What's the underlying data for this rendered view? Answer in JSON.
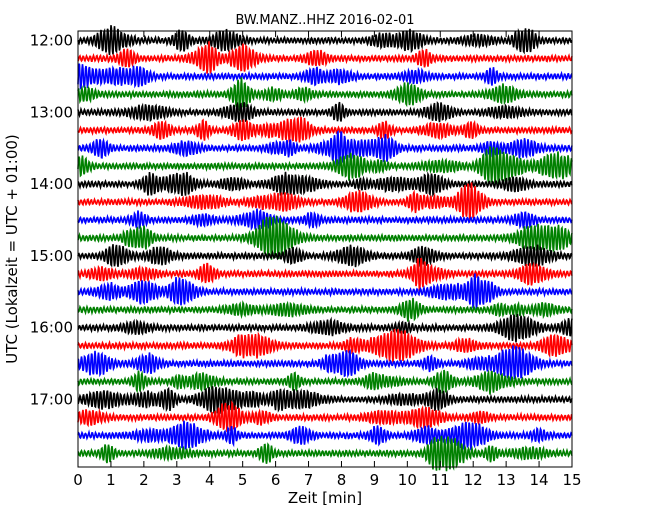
{
  "chart_data": {
    "type": "line",
    "title": "BW.MANZ..HHZ 2016-02-01",
    "xlabel": "Zeit  [min]",
    "ylabel": "UTC (Lokalzeit = UTC + 01:00)",
    "xlim": [
      0,
      15
    ],
    "x_ticks": [
      "0",
      "1",
      "2",
      "3",
      "4",
      "5",
      "6",
      "7",
      "8",
      "9",
      "10",
      "11",
      "12",
      "13",
      "14",
      "15"
    ],
    "y_tick_labels": [
      "12:00",
      "13:00",
      "14:00",
      "15:00",
      "16:00",
      "17:00"
    ],
    "trace_start_times": [
      "12:00",
      "12:15",
      "12:30",
      "12:45",
      "13:00",
      "13:15",
      "13:30",
      "13:45",
      "14:00",
      "14:15",
      "14:30",
      "14:45",
      "15:00",
      "15:15",
      "15:30",
      "15:45",
      "16:00",
      "16:15",
      "16:30",
      "16:45",
      "17:00",
      "17:15",
      "17:30",
      "17:45"
    ],
    "trace_colors": [
      "#000000",
      "#ff0000",
      "#0000ff",
      "#008000"
    ],
    "grid": false,
    "legend": "none"
  }
}
